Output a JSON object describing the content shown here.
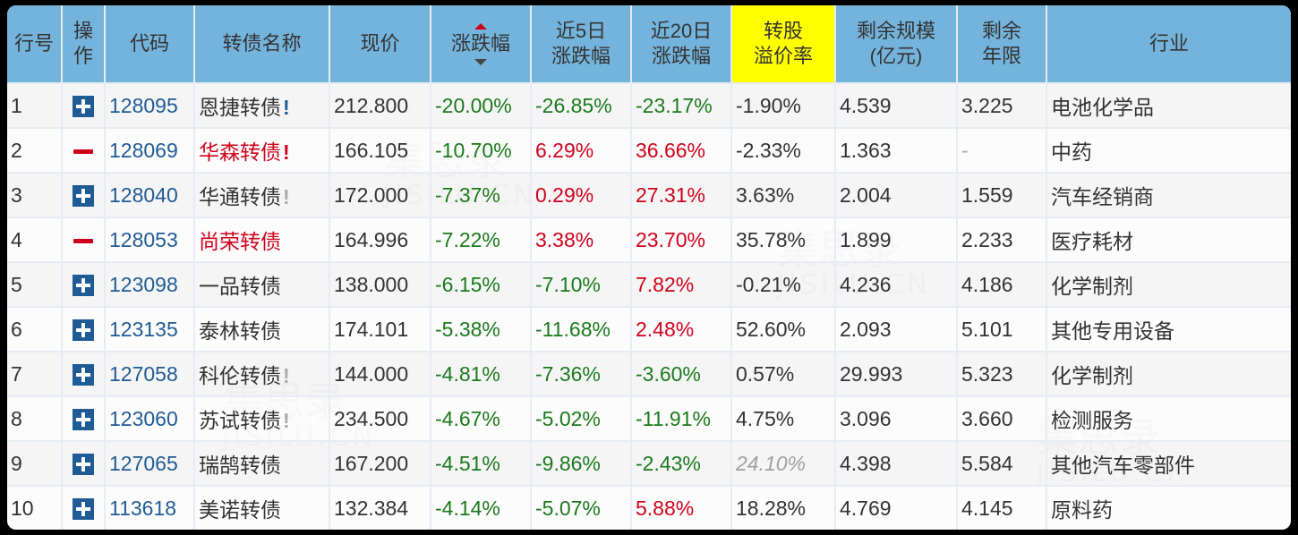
{
  "colors": {
    "header_bg": "#74b4dc",
    "header_highlight": "#ffff00",
    "up": "#d0021b",
    "down": "#1b7a1b",
    "code_link": "#1f5b94",
    "border": "#e6ebf4"
  },
  "table": {
    "headers": {
      "row_no": "行号",
      "op_line1": "操",
      "op_line2": "作",
      "code": "代码",
      "name": "转债名称",
      "price": "现价",
      "change": "涨跌幅",
      "change5_line1": "近5日",
      "change5_line2": "涨跌幅",
      "change20_line1": "近20日",
      "change20_line2": "涨跌幅",
      "premium_line1": "转股",
      "premium_line2": "溢价率",
      "size_line1": "剩余规模",
      "size_line2": "(亿元)",
      "years_line1": "剩余",
      "years_line2": "年限",
      "industry": "行业"
    },
    "sort": {
      "column": "change",
      "active_direction": "desc"
    },
    "rows": [
      {
        "no": "1",
        "op": "add",
        "code": "128095",
        "name": "恩捷转债",
        "name_color": "normal",
        "flag": "!",
        "flag_color": "blue",
        "price": "212.800",
        "change": "-20.00%",
        "change_dir": "down",
        "change5": "-26.85%",
        "change5_dir": "down",
        "change20": "-23.17%",
        "change20_dir": "down",
        "premium": "-1.90%",
        "premium_style": "normal",
        "size": "4.539",
        "years": "3.225",
        "industry": "电池化学品"
      },
      {
        "no": "2",
        "op": "remove",
        "code": "128069",
        "name": "华森转债",
        "name_color": "red",
        "flag": "!",
        "flag_color": "red",
        "price": "166.105",
        "change": "-10.70%",
        "change_dir": "down",
        "change5": "6.29%",
        "change5_dir": "up",
        "change20": "36.66%",
        "change20_dir": "up",
        "premium": "-2.33%",
        "premium_style": "normal",
        "size": "1.363",
        "years": "-",
        "industry": "中药"
      },
      {
        "no": "3",
        "op": "add",
        "code": "128040",
        "name": "华通转债",
        "name_color": "normal",
        "flag": "!",
        "flag_color": "gray",
        "price": "172.000",
        "change": "-7.37%",
        "change_dir": "down",
        "change5": "0.29%",
        "change5_dir": "up",
        "change20": "27.31%",
        "change20_dir": "up",
        "premium": "3.63%",
        "premium_style": "normal",
        "size": "2.004",
        "years": "1.559",
        "industry": "汽车经销商"
      },
      {
        "no": "4",
        "op": "remove",
        "code": "128053",
        "name": "尚荣转债",
        "name_color": "red",
        "flag": "",
        "flag_color": "none",
        "price": "164.996",
        "change": "-7.22%",
        "change_dir": "down",
        "change5": "3.38%",
        "change5_dir": "up",
        "change20": "23.70%",
        "change20_dir": "up",
        "premium": "35.78%",
        "premium_style": "normal",
        "size": "1.899",
        "years": "2.233",
        "industry": "医疗耗材"
      },
      {
        "no": "5",
        "op": "add",
        "code": "123098",
        "name": "一品转债",
        "name_color": "normal",
        "flag": "",
        "flag_color": "none",
        "price": "138.000",
        "change": "-6.15%",
        "change_dir": "down",
        "change5": "-7.10%",
        "change5_dir": "down",
        "change20": "7.82%",
        "change20_dir": "up",
        "premium": "-0.21%",
        "premium_style": "normal",
        "size": "4.236",
        "years": "4.186",
        "industry": "化学制剂"
      },
      {
        "no": "6",
        "op": "add",
        "code": "123135",
        "name": "泰林转债",
        "name_color": "normal",
        "flag": "",
        "flag_color": "none",
        "price": "174.101",
        "change": "-5.38%",
        "change_dir": "down",
        "change5": "-11.68%",
        "change5_dir": "down",
        "change20": "2.48%",
        "change20_dir": "up",
        "premium": "52.60%",
        "premium_style": "normal",
        "size": "2.093",
        "years": "5.101",
        "industry": "其他专用设备"
      },
      {
        "no": "7",
        "op": "add",
        "code": "127058",
        "name": "科伦转债",
        "name_color": "normal",
        "flag": "!",
        "flag_color": "gray",
        "price": "144.000",
        "change": "-4.81%",
        "change_dir": "down",
        "change5": "-7.36%",
        "change5_dir": "down",
        "change20": "-3.60%",
        "change20_dir": "down",
        "premium": "0.57%",
        "premium_style": "normal",
        "size": "29.993",
        "years": "5.323",
        "industry": "化学制剂"
      },
      {
        "no": "8",
        "op": "add",
        "code": "123060",
        "name": "苏试转债",
        "name_color": "normal",
        "flag": "!",
        "flag_color": "gray",
        "price": "234.500",
        "change": "-4.67%",
        "change_dir": "down",
        "change5": "-5.02%",
        "change5_dir": "down",
        "change20": "-11.91%",
        "change20_dir": "down",
        "premium": "4.75%",
        "premium_style": "normal",
        "size": "3.096",
        "years": "3.660",
        "industry": "检测服务"
      },
      {
        "no": "9",
        "op": "add",
        "code": "127065",
        "name": "瑞鹄转债",
        "name_color": "normal",
        "flag": "",
        "flag_color": "none",
        "price": "167.200",
        "change": "-4.51%",
        "change_dir": "down",
        "change5": "-9.86%",
        "change5_dir": "down",
        "change20": "-2.43%",
        "change20_dir": "down",
        "premium": "24.10%",
        "premium_style": "muted",
        "size": "4.398",
        "years": "5.584",
        "industry": "其他汽车零部件"
      },
      {
        "no": "10",
        "op": "add",
        "code": "113618",
        "name": "美诺转债",
        "name_color": "normal",
        "flag": "",
        "flag_color": "none",
        "price": "132.384",
        "change": "-4.14%",
        "change_dir": "down",
        "change5": "-5.07%",
        "change5_dir": "down",
        "change20": "5.88%",
        "change20_dir": "up",
        "premium": "18.28%",
        "premium_style": "normal",
        "size": "4.769",
        "years": "4.145",
        "industry": "原料药"
      }
    ]
  },
  "watermark": {
    "text": "集思录",
    "sub": "JISILU.CN"
  }
}
